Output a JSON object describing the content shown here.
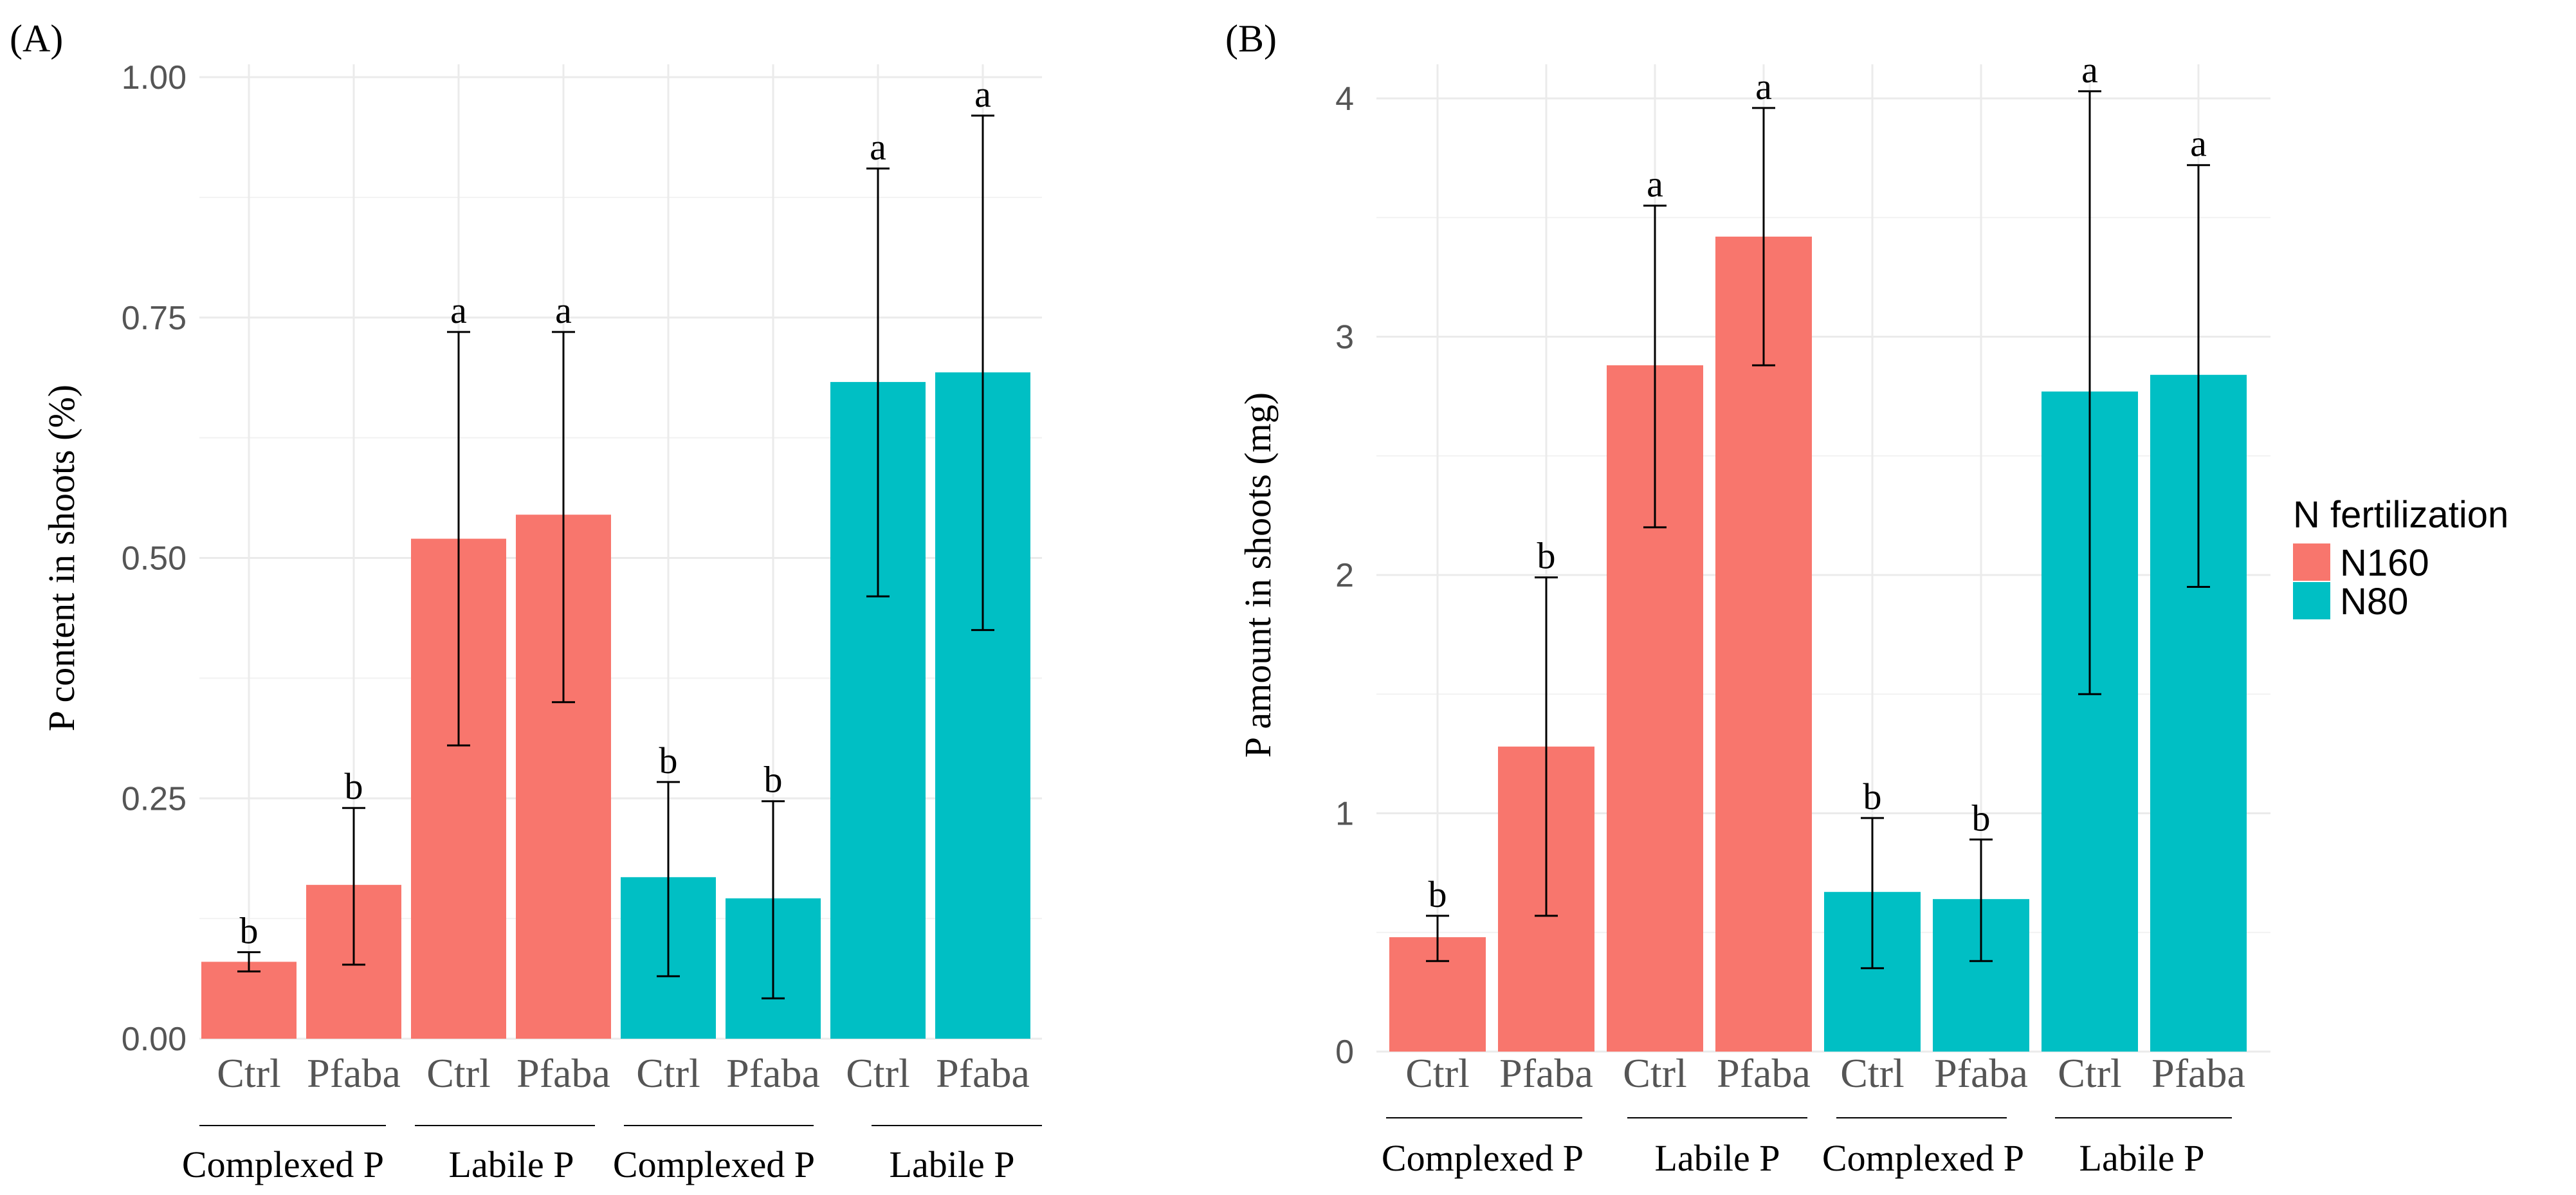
{
  "chart_data": [
    {
      "type": "bar",
      "panel_label": "(A)",
      "ylabel": "P content in shoots (%)",
      "ylim": [
        0,
        1.0
      ],
      "yticks": [
        {
          "value": 0,
          "label": "0.00"
        },
        {
          "value": 0.25,
          "label": "0.25"
        },
        {
          "value": 0.5,
          "label": "0.50"
        },
        {
          "value": 0.75,
          "label": "0.75"
        },
        {
          "value": 1.0,
          "label": "1.00"
        }
      ],
      "bars": [
        {
          "label": "Ctrl",
          "value": 0.08,
          "err_low": 0.07,
          "err_high": 0.09,
          "sig": "b",
          "series": "N160"
        },
        {
          "label": "Pfaba",
          "value": 0.16,
          "err_low": 0.077,
          "err_high": 0.24,
          "sig": "b",
          "series": "N160"
        },
        {
          "label": "Ctrl",
          "value": 0.52,
          "err_low": 0.305,
          "err_high": 0.735,
          "sig": "a",
          "series": "N160"
        },
        {
          "label": "Pfaba",
          "value": 0.545,
          "err_low": 0.35,
          "err_high": 0.735,
          "sig": "a",
          "series": "N160"
        },
        {
          "label": "Ctrl",
          "value": 0.168,
          "err_low": 0.065,
          "err_high": 0.267,
          "sig": "b",
          "series": "N80"
        },
        {
          "label": "Pfaba",
          "value": 0.146,
          "err_low": 0.042,
          "err_high": 0.247,
          "sig": "b",
          "series": "N80"
        },
        {
          "label": "Ctrl",
          "value": 0.683,
          "err_low": 0.46,
          "err_high": 0.905,
          "sig": "a",
          "series": "N80"
        },
        {
          "label": "Pfaba",
          "value": 0.693,
          "err_low": 0.425,
          "err_high": 0.96,
          "sig": "a",
          "series": "N80"
        }
      ],
      "groups": [
        "Complexed  P",
        "Labile P",
        "Complexed  P",
        "Labile P"
      ]
    },
    {
      "type": "bar",
      "panel_label": "(B)",
      "ylabel": "P amount in shoots (mg)",
      "ylim": [
        0,
        4.2
      ],
      "yticks": [
        {
          "value": 0,
          "label": "0"
        },
        {
          "value": 1,
          "label": "1"
        },
        {
          "value": 2,
          "label": "2"
        },
        {
          "value": 3,
          "label": "3"
        },
        {
          "value": 4,
          "label": "4"
        }
      ],
      "bars": [
        {
          "label": "Ctrl",
          "value": 0.48,
          "err_low": 0.38,
          "err_high": 0.57,
          "sig": "b",
          "series": "N160"
        },
        {
          "label": "Pfaba",
          "value": 1.28,
          "err_low": 0.57,
          "err_high": 1.99,
          "sig": "b",
          "series": "N160"
        },
        {
          "label": "Ctrl",
          "value": 2.88,
          "err_low": 2.2,
          "err_high": 3.55,
          "sig": "a",
          "series": "N160"
        },
        {
          "label": "Pfaba",
          "value": 3.42,
          "err_low": 2.88,
          "err_high": 3.96,
          "sig": "a",
          "series": "N160"
        },
        {
          "label": "Ctrl",
          "value": 0.67,
          "err_low": 0.35,
          "err_high": 0.98,
          "sig": "b",
          "series": "N80"
        },
        {
          "label": "Pfaba",
          "value": 0.64,
          "err_low": 0.38,
          "err_high": 0.89,
          "sig": "b",
          "series": "N80"
        },
        {
          "label": "Ctrl",
          "value": 2.77,
          "err_low": 1.5,
          "err_high": 4.03,
          "sig": "a",
          "series": "N80"
        },
        {
          "label": "Pfaba",
          "value": 2.84,
          "err_low": 1.95,
          "err_high": 3.72,
          "sig": "a",
          "series": "N80"
        }
      ],
      "groups": [
        "Complexed  P",
        "Labile P",
        "Complexed  P",
        "Labile P"
      ]
    }
  ],
  "legend": {
    "title": "N fertilization",
    "items": [
      {
        "name": "N160",
        "color": "#F8766D"
      },
      {
        "name": "N80",
        "color": "#00BFC4"
      }
    ]
  },
  "colors": {
    "N160": "#F8766D",
    "N80": "#00BFC4",
    "grid": "#EBEBEB"
  }
}
